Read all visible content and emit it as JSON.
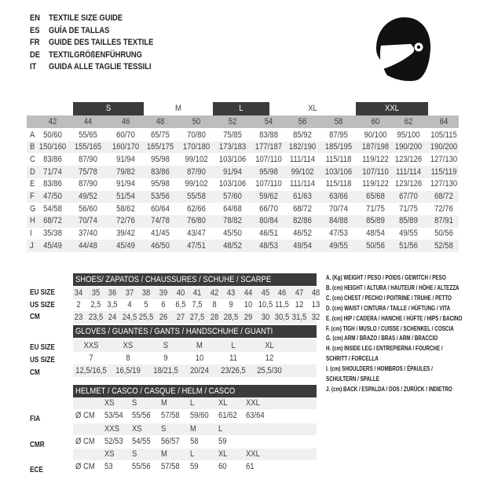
{
  "titles": [
    {
      "lang": "EN",
      "text": "TEXTILE SIZE GUIDE"
    },
    {
      "lang": "ES",
      "text": "GUÍA DE TALLAS"
    },
    {
      "lang": "FR",
      "text": "GUIDE DES TAILLES TEXTILE"
    },
    {
      "lang": "DE",
      "text": "TEXTILGRÖßENFÜHRUNG"
    },
    {
      "lang": "IT",
      "text": "GUIDA ALLE TAGLIE TESSILI"
    }
  ],
  "icon": "helmet-icon",
  "colors": {
    "dark_band": "#3b3b3b",
    "header_gray": "#bdbdbd",
    "stripe": "#f0f0f0"
  },
  "textile": {
    "size_groups": [
      {
        "label": "S",
        "dark": true
      },
      {
        "label": "M",
        "dark": false
      },
      {
        "label": "L",
        "dark": true
      },
      {
        "label": "XL",
        "dark": false
      },
      {
        "label": "XXL",
        "dark": true
      }
    ],
    "eu_sizes": [
      "42",
      "44",
      "46",
      "48",
      "50",
      "52",
      "54",
      "56",
      "58",
      "60",
      "62",
      "64"
    ],
    "rows": [
      {
        "key": "A",
        "values": [
          "50/60",
          "55/65",
          "60/70",
          "65/75",
          "70/80",
          "75/85",
          "83/88",
          "85/92",
          "87/95",
          "90/100",
          "95/100",
          "105/115"
        ]
      },
      {
        "key": "B",
        "values": [
          "150/160",
          "155/165",
          "160/170",
          "165/175",
          "170/180",
          "173/183",
          "177/187",
          "182/190",
          "185/195",
          "187/198",
          "190/200",
          "190/200"
        ]
      },
      {
        "key": "C",
        "values": [
          "83/86",
          "87/90",
          "91/94",
          "95/98",
          "99/102",
          "103/106",
          "107/110",
          "111/114",
          "115/118",
          "119/122",
          "123/126",
          "127/130"
        ]
      },
      {
        "key": "D",
        "values": [
          "71/74",
          "75/78",
          "79/82",
          "83/86",
          "87/90",
          "91/94",
          "95/98",
          "99/102",
          "103/106",
          "107/110",
          "111/114",
          "115/119"
        ]
      },
      {
        "key": "E",
        "values": [
          "83/86",
          "87/90",
          "91/94",
          "95/98",
          "99/102",
          "103/106",
          "107/110",
          "111/114",
          "115/118",
          "119/122",
          "123/126",
          "127/130"
        ]
      },
      {
        "key": "F",
        "values": [
          "47/50",
          "49/52",
          "51/54",
          "53/56",
          "55/58",
          "57/60",
          "59/62",
          "61/63",
          "63/66",
          "65/68",
          "67/70",
          "68/72"
        ]
      },
      {
        "key": "G",
        "values": [
          "54/58",
          "56/60",
          "58/62",
          "60/64",
          "62/66",
          "64/68",
          "66/70",
          "68/72",
          "70/74",
          "71/75",
          "71/75",
          "72/76"
        ]
      },
      {
        "key": "H",
        "values": [
          "68/72",
          "70/74",
          "72/76",
          "74/78",
          "76/80",
          "78/82",
          "80/84",
          "82/86",
          "84/88",
          "85/89",
          "85/89",
          "87/91"
        ]
      },
      {
        "key": "I",
        "values": [
          "35/38",
          "37/40",
          "39/42",
          "41/45",
          "43/47",
          "45/50",
          "46/51",
          "46/52",
          "47/53",
          "48/54",
          "49/55",
          "50/56"
        ]
      },
      {
        "key": "J",
        "values": [
          "45/49",
          "44/48",
          "45/49",
          "46/50",
          "47/51",
          "48/52",
          "48/53",
          "49/54",
          "49/55",
          "50/56",
          "51/56",
          "52/58"
        ]
      }
    ]
  },
  "shoes": {
    "header": "SHOES/ ZAPATOS / CHAUSSURES / SCHUHE / SCARPE",
    "rows": [
      {
        "label": "EU SIZE",
        "values": [
          "34",
          "35",
          "36",
          "37",
          "38",
          "39",
          "40",
          "41",
          "42",
          "43",
          "44",
          "45",
          "46",
          "47",
          "48"
        ]
      },
      {
        "label": "US SIZE",
        "values": [
          "2",
          "2,5",
          "3,5",
          "4",
          "5",
          "6",
          "6,5",
          "7,5",
          "8",
          "9",
          "10",
          "10,5",
          "11,5",
          "12",
          "13"
        ]
      },
      {
        "label": "CM",
        "values": [
          "23",
          "23,5",
          "24",
          "24,5",
          "25,5",
          "26",
          "27",
          "27,5",
          "28",
          "28,5",
          "29",
          "30",
          "30,5",
          "31,5",
          "32"
        ]
      }
    ]
  },
  "gloves": {
    "header": "GLOVES / GUANTES / GANTS / HANDSCHUHE / GUANTI",
    "rows": [
      {
        "label": "EU SIZE",
        "values": [
          "XXS",
          "XS",
          "S",
          "M",
          "L",
          "XL"
        ]
      },
      {
        "label": "US SIZE",
        "values": [
          "7",
          "8",
          "9",
          "10",
          "11",
          "12"
        ]
      },
      {
        "label": "CM",
        "values": [
          "12,5/16,5",
          "16,5/19",
          "18/21,5",
          "20/24",
          "23/26,5",
          "25,5/30"
        ]
      }
    ]
  },
  "helmet": {
    "header": "HELMET / CASCO / CASQUE / HELM / CASCO",
    "unit": "Ø CM",
    "standards": [
      {
        "label": "FIA",
        "sizes": [
          "XS",
          "S",
          "M",
          "L",
          "XL",
          "XXL"
        ],
        "values": [
          "53/54",
          "55/56",
          "57/58",
          "59/60",
          "61/62",
          "63/64"
        ]
      },
      {
        "label": "CMR",
        "sizes": [
          "XXS",
          "XS",
          "S",
          "M",
          "L"
        ],
        "values": [
          "52/53",
          "54/55",
          "56/57",
          "58",
          "59"
        ]
      },
      {
        "label": "ECE",
        "sizes": [
          "XS",
          "S",
          "M",
          "L",
          "XL",
          "XXL"
        ],
        "values": [
          "53",
          "55/56",
          "57/58",
          "59",
          "60",
          "61"
        ]
      }
    ]
  },
  "legend": [
    "A. (Kg) WEIGHT / PESO / POIDS / GEWITCH / PESO",
    "B. (cm) HEIGHT / ALTURA / HAUTEUR / HÖHE / ALTEZZA",
    "C. (cm) CHEST / PECHO / POITRINE / TRUHE / PETTO",
    "D. (cm) WAIST / CINTURA / TAILLE / HÜFTUNG / VITA",
    "E. (cm) HIP / CADERA / HANCHE / HÜFTE / HIPS /  BACINO",
    "F.  (cm) TIGH / MUSLO / CUISSE / SCHENKEL / COSCIA",
    "G. (cm) ARM  / BRAZO / BRAS / ARM / BRACCIO",
    "H. (cm) INSIDE LEG / ENTREPIERNA / FOURCHE /",
    "SCHRITT / FORCELLA",
    "I.  (cm) SHOULDERS / HOMBROS / ÉPAULES /",
    "SCHULTERN / SPALLE",
    "J. (cm) BACK / ESPALDA / DOS / ZURÜCK / INDIETRO"
  ]
}
